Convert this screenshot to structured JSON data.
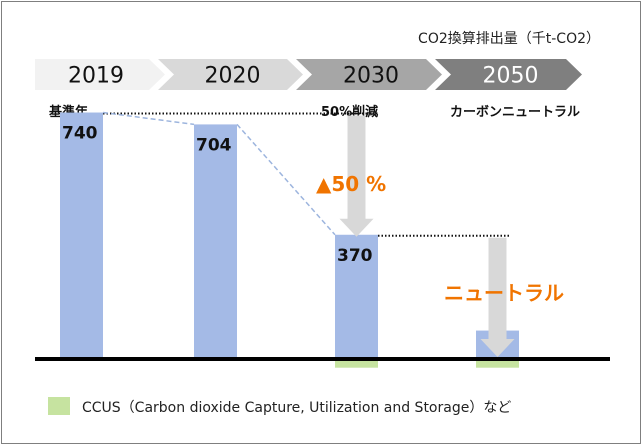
{
  "chart_data": {
    "type": "bar",
    "unit": "CO2換算排出量（千t-CO2）",
    "categories": [
      "2019",
      "2020",
      "2030",
      "2050"
    ],
    "sublabels": [
      "基準年",
      "",
      "50%削減",
      "カーボンニュートラル"
    ],
    "values": [
      740,
      704,
      370,
      80
    ],
    "value_labels": [
      "740",
      "704",
      "370",
      ""
    ],
    "ccus_values": [
      0,
      0,
      45,
      45
    ],
    "ylim": [
      0,
      800
    ],
    "annotations": {
      "reduction": "▲50 %",
      "neutral": "ニュートラル"
    },
    "legend": "CCUS（Carbon dioxide Capture, Utilization and Storage）など",
    "colors": {
      "bar": "#a4bae6",
      "ccus": "#c6e3a0",
      "arrow": "#d8d8d8",
      "accent": "#f07400",
      "dashed": "#9db5de",
      "year_light": "#f2f2f2",
      "year_mid": "#d9d9d9",
      "year_dark1": "#a6a6a6",
      "year_dark2": "#7f7f7f"
    }
  }
}
